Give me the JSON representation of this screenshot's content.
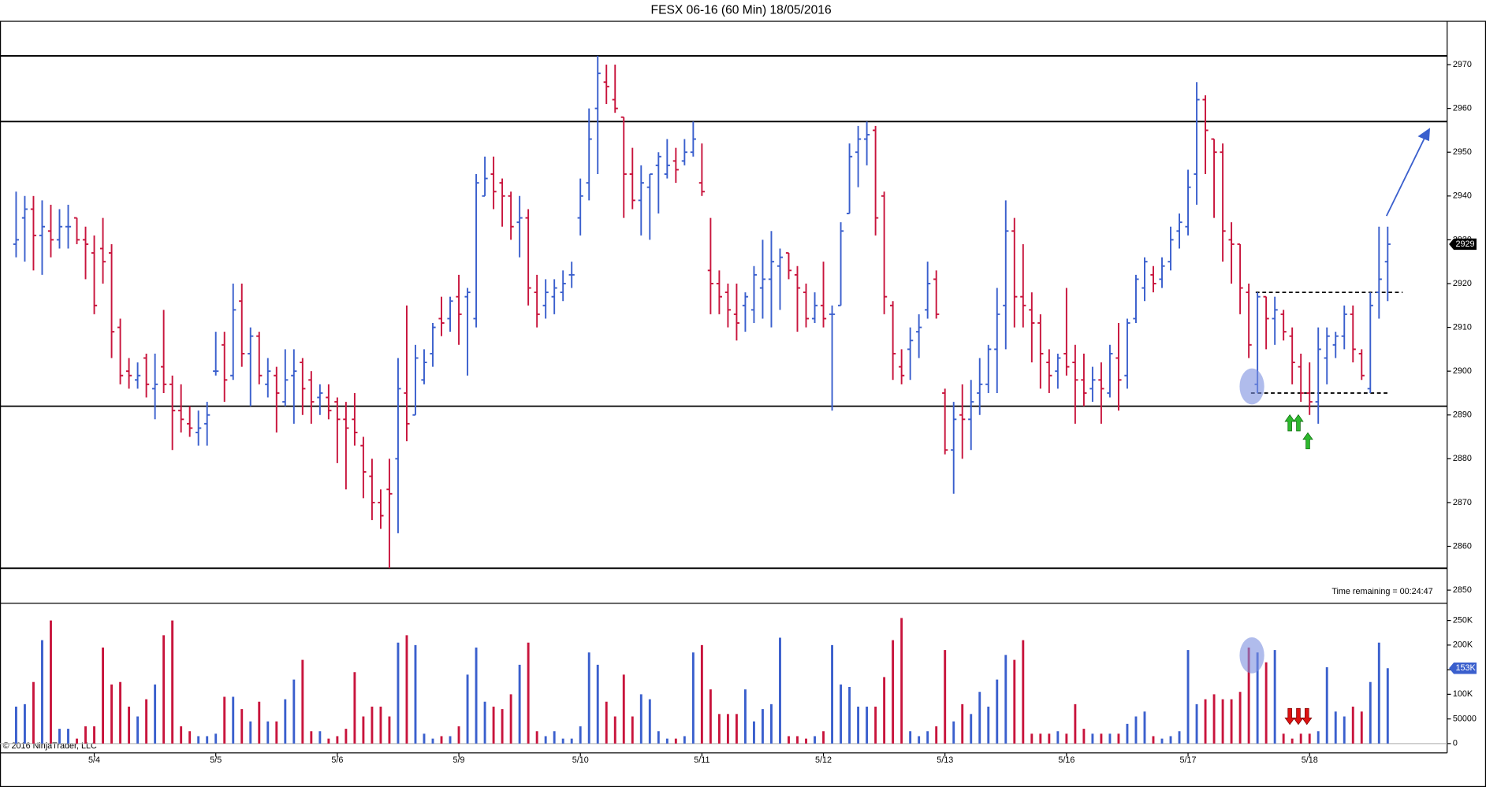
{
  "chart_data": {
    "type": "ohlc",
    "title": "FESX 06-16 (60 Min)  18/05/2016",
    "time_remaining": "Time remaining = 00:24:47",
    "copyright": "© 2016 NinjaTrader, LLC",
    "up_color": "#3a5fcd",
    "down_color": "#c8143c",
    "categories": [
      null,
      null,
      null,
      null,
      null,
      null,
      null,
      null,
      null,
      "5/4",
      null,
      null,
      null,
      null,
      null,
      null,
      null,
      null,
      null,
      null,
      null,
      null,
      null,
      "5/5",
      null,
      null,
      null,
      null,
      null,
      null,
      null,
      null,
      null,
      null,
      null,
      null,
      null,
      "5/6",
      null,
      null,
      null,
      null,
      null,
      null,
      null,
      null,
      null,
      null,
      null,
      null,
      null,
      "5/9",
      null,
      null,
      null,
      null,
      null,
      null,
      null,
      null,
      null,
      null,
      null,
      null,
      null,
      "5/10",
      null,
      null,
      null,
      null,
      null,
      null,
      null,
      null,
      null,
      null,
      null,
      null,
      null,
      "5/11",
      null,
      null,
      null,
      null,
      null,
      null,
      null,
      null,
      null,
      null,
      null,
      null,
      null,
      "5/12",
      null,
      null,
      null,
      null,
      null,
      null,
      null,
      null,
      null,
      null,
      null,
      null,
      null,
      "5/13",
      null,
      null,
      null,
      null,
      null,
      null,
      null,
      null,
      null,
      null,
      null,
      null,
      null,
      "5/16",
      null,
      null,
      null,
      null,
      null,
      null,
      null,
      null,
      null,
      null,
      null,
      null,
      null,
      "5/17",
      null,
      null,
      null,
      null,
      null,
      null,
      null,
      null,
      null,
      null,
      null,
      null,
      null,
      "5/18",
      null,
      null,
      null,
      null,
      null,
      null,
      null,
      null,
      null
    ],
    "ohlc": [
      [
        2929,
        2941,
        2926,
        2930
      ],
      [
        2935,
        2940,
        2925,
        2937
      ],
      [
        2937,
        2940,
        2923,
        2931
      ],
      [
        2931,
        2939,
        2922,
        2933
      ],
      [
        2932,
        2938,
        2926,
        2930
      ],
      [
        2930,
        2937,
        2928,
        2933
      ],
      [
        2933,
        2938,
        2928,
        2933
      ],
      [
        2935,
        2935,
        2929,
        2930
      ],
      [
        2930,
        2933,
        2921,
        2929
      ],
      [
        2927,
        2931,
        2913,
        2915
      ],
      [
        2928,
        2935,
        2920,
        2925
      ],
      [
        2927,
        2929,
        2903,
        2909
      ],
      [
        2910,
        2912,
        2897,
        2899
      ],
      [
        2900,
        2903,
        2896,
        2899
      ],
      [
        2898,
        2902,
        2896,
        2899
      ],
      [
        2903,
        2904,
        2894,
        2897
      ],
      [
        2896,
        2904,
        2889,
        2897
      ],
      [
        2901,
        2914,
        2895,
        2897
      ],
      [
        2897,
        2899,
        2882,
        2891
      ],
      [
        2891,
        2897,
        2886,
        2889
      ],
      [
        2888,
        2892,
        2885,
        2887
      ],
      [
        2886,
        2891,
        2883,
        2887
      ],
      [
        2888,
        2893,
        2883,
        2890
      ],
      [
        2900,
        2909,
        2899,
        2900
      ],
      [
        2906,
        2909,
        2893,
        2898
      ],
      [
        2899,
        2920,
        2898,
        2914
      ],
      [
        2916,
        2920,
        2901,
        2904
      ],
      [
        2904,
        2910,
        2892,
        2908
      ],
      [
        2908,
        2909,
        2897,
        2899
      ],
      [
        2897,
        2903,
        2894,
        2900
      ],
      [
        2899,
        2901,
        2886,
        2895
      ],
      [
        2893,
        2905,
        2892,
        2898
      ],
      [
        2899,
        2905,
        2888,
        2900
      ],
      [
        2902,
        2903,
        2890,
        2896
      ],
      [
        2898,
        2900,
        2888,
        2893
      ],
      [
        2894,
        2897,
        2890,
        2895
      ],
      [
        2894,
        2897,
        2889,
        2891
      ],
      [
        2893,
        2894,
        2879,
        2889
      ],
      [
        2889,
        2893,
        2873,
        2887
      ],
      [
        2889,
        2895,
        2883,
        2886
      ],
      [
        2883,
        2885,
        2871,
        2877
      ],
      [
        2876,
        2880,
        2866,
        2870
      ],
      [
        2870,
        2873,
        2864,
        2867
      ],
      [
        2873,
        2880,
        2855,
        2872
      ],
      [
        2880,
        2903,
        2863,
        2896
      ],
      [
        2895,
        2915,
        2884,
        2888
      ],
      [
        2890,
        2906,
        2890,
        2903
      ],
      [
        2898,
        2905,
        2897,
        2902
      ],
      [
        2904,
        2911,
        2901,
        2910
      ],
      [
        2912,
        2917,
        2908,
        2911
      ],
      [
        2912,
        2917,
        2909,
        2916
      ],
      [
        2917,
        2922,
        2906,
        2913
      ],
      [
        2917,
        2919,
        2899,
        2918
      ],
      [
        2912,
        2945,
        2910,
        2943
      ],
      [
        2940,
        2949,
        2940,
        2944
      ],
      [
        2945,
        2949,
        2937,
        2941
      ],
      [
        2943,
        2944,
        2933,
        2940
      ],
      [
        2940,
        2941,
        2930,
        2933
      ],
      [
        2934,
        2940,
        2926,
        2935
      ],
      [
        2935,
        2937,
        2915,
        2919
      ],
      [
        2918,
        2922,
        2910,
        2913
      ],
      [
        2915,
        2921,
        2912,
        2918
      ],
      [
        2917,
        2921,
        2913,
        2919
      ],
      [
        2918,
        2923,
        2916,
        2920
      ],
      [
        2922,
        2925,
        2919,
        2922
      ],
      [
        2935,
        2944,
        2931,
        2940
      ],
      [
        2943,
        2960,
        2939,
        2953
      ],
      [
        2960,
        2972,
        2945,
        2968
      ],
      [
        2966,
        2970,
        2961,
        2965
      ],
      [
        2962,
        2970,
        2959,
        2960
      ],
      [
        2958,
        2958,
        2935,
        2945
      ],
      [
        2945,
        2951,
        2937,
        2939
      ],
      [
        2939,
        2947,
        2931,
        2943
      ],
      [
        2942,
        2945,
        2930,
        2945
      ],
      [
        2947,
        2950,
        2936,
        2949
      ],
      [
        2945,
        2953,
        2944,
        2947
      ],
      [
        2948,
        2951,
        2943,
        2946
      ],
      [
        2948,
        2953,
        2947,
        2950
      ],
      [
        2950,
        2957,
        2949,
        2953
      ],
      [
        2943,
        2952,
        2940,
        2941
      ],
      [
        2923,
        2935,
        2913,
        2920
      ],
      [
        2920,
        2923,
        2913,
        2917
      ],
      [
        2918,
        2920,
        2910,
        2914
      ],
      [
        2913,
        2920,
        2907,
        2911
      ],
      [
        2915,
        2918,
        2909,
        2917
      ],
      [
        2914,
        2924,
        2911,
        2922
      ],
      [
        2919,
        2930,
        2912,
        2921
      ],
      [
        2921,
        2932,
        2910,
        2925
      ],
      [
        2924,
        2928,
        2914,
        2926
      ],
      [
        2927,
        2927,
        2921,
        2923
      ],
      [
        2922,
        2924,
        2909,
        2919
      ],
      [
        2918,
        2920,
        2910,
        2912
      ],
      [
        2912,
        2918,
        2911,
        2915
      ],
      [
        2915,
        2925,
        2910,
        2912
      ],
      [
        2913,
        2915,
        2891,
        2913
      ],
      [
        2915,
        2934,
        2915,
        2932
      ],
      [
        2936,
        2952,
        2936,
        2949
      ],
      [
        2950,
        2956,
        2942,
        2953
      ],
      [
        2953,
        2957,
        2947,
        2954
      ],
      [
        2955,
        2956,
        2931,
        2935
      ],
      [
        2940,
        2941,
        2913,
        2917
      ],
      [
        2915,
        2916,
        2898,
        2904
      ],
      [
        2901,
        2905,
        2897,
        2899
      ],
      [
        2905,
        2910,
        2898,
        2907
      ],
      [
        2909,
        2913,
        2903,
        2910
      ],
      [
        2914,
        2925,
        2912,
        2920
      ],
      [
        2921,
        2923,
        2912,
        2913
      ],
      [
        2895,
        2896,
        2881,
        2882
      ],
      [
        2882,
        2893,
        2872,
        2889
      ],
      [
        2890,
        2897,
        2880,
        2889
      ],
      [
        2889,
        2898,
        2882,
        2893
      ],
      [
        2895,
        2903,
        2890,
        2897
      ],
      [
        2897,
        2906,
        2895,
        2905
      ],
      [
        2905,
        2919,
        2895,
        2913
      ],
      [
        2915,
        2939,
        2905,
        2932
      ],
      [
        2932,
        2935,
        2910,
        2917
      ],
      [
        2917,
        2929,
        2910,
        2915
      ],
      [
        2914,
        2918,
        2902,
        2911
      ],
      [
        2911,
        2913,
        2896,
        2904
      ],
      [
        2902,
        2905,
        2895,
        2899
      ],
      [
        2900,
        2904,
        2896,
        2903
      ],
      [
        2904,
        2919,
        2899,
        2901
      ],
      [
        2902,
        2906,
        2888,
        2898
      ],
      [
        2898,
        2904,
        2892,
        2895
      ],
      [
        2896,
        2901,
        2893,
        2898
      ],
      [
        2898,
        2902,
        2888,
        2896
      ],
      [
        2895,
        2906,
        2894,
        2904
      ],
      [
        2903,
        2911,
        2891,
        2898
      ],
      [
        2899,
        2912,
        2896,
        2911
      ],
      [
        2912,
        2922,
        2911,
        2921
      ],
      [
        2919,
        2926,
        2916,
        2925
      ],
      [
        2922,
        2924,
        2918,
        2920
      ],
      [
        2921,
        2926,
        2919,
        2924
      ],
      [
        2925,
        2933,
        2923,
        2930
      ],
      [
        2932,
        2936,
        2928,
        2934
      ],
      [
        2933,
        2946,
        2931,
        2942
      ],
      [
        2945,
        2966,
        2938,
        2962
      ],
      [
        2962,
        2963,
        2945,
        2955
      ],
      [
        2953,
        2953,
        2935,
        2950
      ],
      [
        2950,
        2952,
        2925,
        2932
      ],
      [
        2930,
        2934,
        2920,
        2929
      ],
      [
        2929,
        2929,
        2913,
        2919
      ],
      [
        2918,
        2920,
        2903,
        2906
      ],
      [
        2897,
        2918,
        2895,
        2917
      ],
      [
        2917,
        2917,
        2905,
        2912
      ],
      [
        2912,
        2917,
        2906,
        2914
      ],
      [
        2913,
        2914,
        2907,
        2909
      ],
      [
        2908,
        2910,
        2897,
        2902
      ],
      [
        2901,
        2904,
        2893,
        2895
      ],
      [
        2895,
        2902,
        2890,
        2893
      ],
      [
        2893,
        2910,
        2888,
        2905
      ],
      [
        2903,
        2910,
        2897,
        2908
      ],
      [
        2906,
        2909,
        2903,
        2908
      ],
      [
        2908,
        2915,
        2905,
        2913
      ],
      [
        2913,
        2915,
        2902,
        2905
      ],
      [
        2904,
        2905,
        2898,
        2899
      ],
      [
        2896,
        2918,
        2895,
        2915
      ],
      [
        2918,
        2933,
        2912,
        2921
      ],
      [
        2925,
        2933,
        2916,
        2929
      ]
    ],
    "volume": [
      75000,
      80000,
      125000,
      210000,
      250000,
      30000,
      30000,
      10000,
      35000,
      35000,
      195000,
      120000,
      125000,
      75000,
      55000,
      90000,
      120000,
      220000,
      250000,
      35000,
      25000,
      15000,
      15000,
      20000,
      95000,
      95000,
      70000,
      45000,
      85000,
      45000,
      45000,
      90000,
      130000,
      170000,
      25000,
      25000,
      10000,
      15000,
      30000,
      145000,
      55000,
      75000,
      75000,
      55000,
      205000,
      220000,
      200000,
      20000,
      10000,
      15000,
      15000,
      35000,
      140000,
      195000,
      85000,
      75000,
      70000,
      100000,
      160000,
      205000,
      25000,
      15000,
      25000,
      10000,
      10000,
      35000,
      185000,
      160000,
      85000,
      55000,
      140000,
      55000,
      100000,
      90000,
      25000,
      10000,
      10000,
      15000,
      185000,
      200000,
      110000,
      60000,
      60000,
      60000,
      110000,
      45000,
      70000,
      80000,
      215000,
      15000,
      15000,
      10000,
      15000,
      25000,
      200000,
      120000,
      115000,
      75000,
      75000,
      75000,
      135000,
      210000,
      255000,
      25000,
      15000,
      25000,
      35000,
      190000,
      45000,
      80000,
      60000,
      105000,
      75000,
      130000,
      180000,
      170000,
      210000,
      20000,
      20000,
      20000,
      25000,
      20000,
      80000,
      30000,
      20000,
      20000,
      20000,
      20000,
      40000,
      55000,
      65000,
      15000,
      10000,
      15000,
      25000,
      190000,
      80000,
      90000,
      100000,
      90000,
      90000,
      105000,
      195000,
      185000,
      165000,
      190000,
      20000,
      10000,
      20000,
      20000,
      25000,
      155000,
      65000,
      55000,
      75000,
      65000,
      125000,
      205000,
      153000
    ],
    "ylim": [
      2847,
      2980
    ],
    "yticks": [
      2850,
      2860,
      2870,
      2880,
      2890,
      2900,
      2910,
      2920,
      2930,
      2940,
      2950,
      2960,
      2970
    ],
    "volume_ylim": [
      -19000,
      283000
    ],
    "volume_yticks": [
      0,
      50000,
      {
        "value": 100000,
        "label": "100K"
      },
      {
        "value": 150000,
        "label": "150K"
      },
      {
        "value": 200000,
        "label": "200K"
      },
      {
        "value": 250000,
        "label": "250K"
      }
    ],
    "volume_marker": {
      "value": 153000,
      "label": "153K"
    },
    "levels": [
      2972,
      2957,
      2892,
      2855
    ],
    "dashed_levels": [
      2918,
      2895
    ]
  }
}
